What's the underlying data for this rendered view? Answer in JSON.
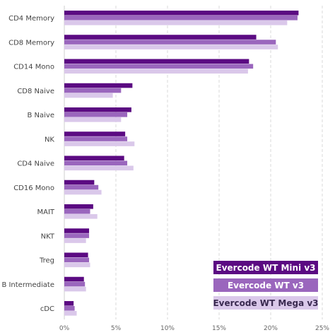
{
  "chart_data": {
    "type": "bar",
    "orientation": "horizontal",
    "categories": [
      "CD4 Memory",
      "CD8 Memory",
      "CD14 Mono",
      "CD8 Naive",
      "B Naive",
      "NK",
      "CD4 Naive",
      "CD16 Mono",
      "MAIT",
      "NKT",
      "Treg",
      "B Intermediate",
      "cDC"
    ],
    "series": [
      {
        "name": "Evercode WT Mini v3",
        "color": "#5b0a82",
        "text_color": "#ffffff",
        "values": [
          22.7,
          18.6,
          17.9,
          6.6,
          6.5,
          5.9,
          5.8,
          2.9,
          2.8,
          2.4,
          2.3,
          1.9,
          0.9
        ]
      },
      {
        "name": "Evercode WT v3",
        "color": "#9a66bd",
        "text_color": "#ffffff",
        "values": [
          22.6,
          20.5,
          18.3,
          5.5,
          6.1,
          6.1,
          6.1,
          3.3,
          2.5,
          2.4,
          2.4,
          2.0,
          1.0
        ]
      },
      {
        "name": "Evercode WT Mega v3",
        "color": "#dac8ea",
        "text_color": "#3a2a50",
        "values": [
          21.6,
          20.7,
          17.8,
          4.7,
          5.5,
          6.8,
          6.7,
          3.6,
          3.2,
          2.1,
          2.5,
          2.1,
          1.2
        ]
      }
    ],
    "xlim": [
      0,
      25
    ],
    "xticks": [
      "0%",
      "5%",
      "10%",
      "15%",
      "20%",
      "25%"
    ],
    "grid": "vertical-dashed",
    "legend_position": "bottom-right",
    "title": "",
    "xlabel": "",
    "ylabel": ""
  }
}
